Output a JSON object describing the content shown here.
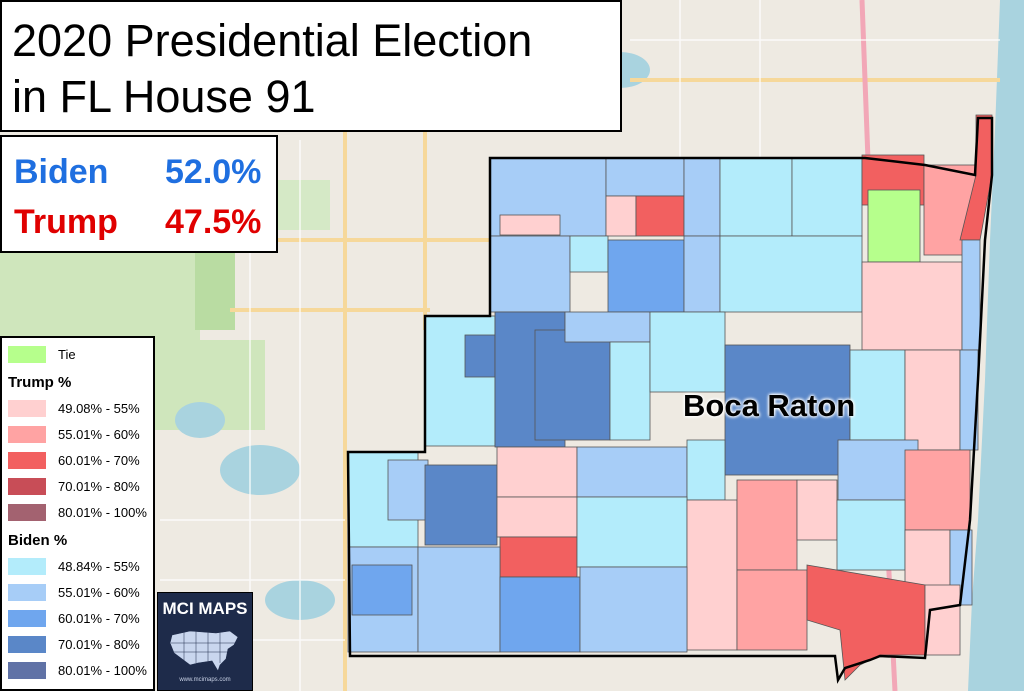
{
  "title": {
    "line1": "2020 Presidential Election",
    "line2": "in FL House 91"
  },
  "results": [
    {
      "candidate": "Biden",
      "pct": "52.0%",
      "color": "#1f6fe0"
    },
    {
      "candidate": "Trump",
      "pct": "47.5%",
      "color": "#e00000"
    }
  ],
  "city_label": "Boca Raton",
  "legend": {
    "tie": {
      "label": "Tie",
      "color": "#b6ff8c"
    },
    "trump_header": "Trump  %",
    "trump": [
      {
        "label": "49.08% - 55%",
        "color": "#ffd0d0"
      },
      {
        "label": "55.01% - 60%",
        "color": "#ffa3a3"
      },
      {
        "label": "60.01% - 70%",
        "color": "#f26060"
      },
      {
        "label": "70.01% - 80%",
        "color": "#c84d57"
      },
      {
        "label": "80.01% - 100%",
        "color": "#a36270"
      }
    ],
    "biden_header": "Biden  %",
    "biden": [
      {
        "label": "48.84% - 55%",
        "color": "#b3ecfb"
      },
      {
        "label": "55.01% - 60%",
        "color": "#a7cdf7"
      },
      {
        "label": "60.01% - 70%",
        "color": "#6fa6ee"
      },
      {
        "label": "70.01% - 80%",
        "color": "#5a87c8"
      },
      {
        "label": "80.01% - 100%",
        "color": "#6072a6"
      }
    ]
  },
  "logo": {
    "text": "MCI MAPS",
    "url": "www.mcimaps.com"
  },
  "map_colors": {
    "land": "#eeeae2",
    "water": "#a9d3df",
    "park": "#c8e6b4"
  }
}
